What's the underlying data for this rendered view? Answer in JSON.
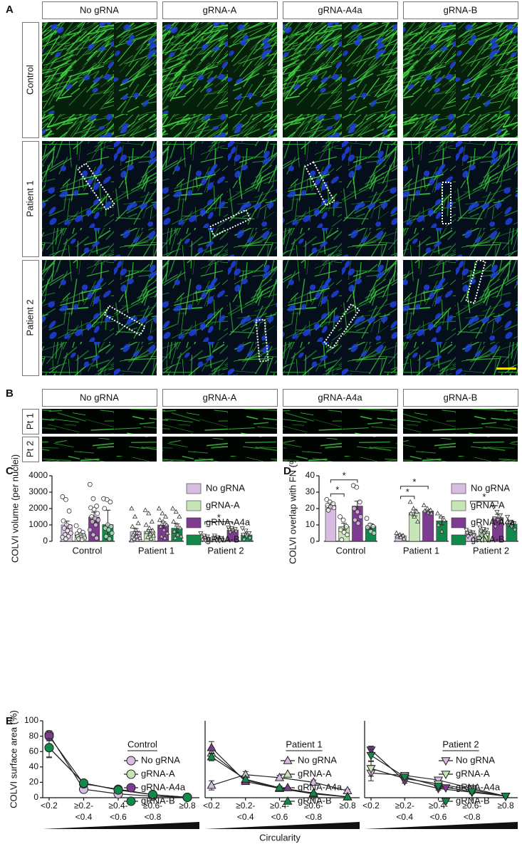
{
  "panel_labels": [
    "A",
    "B",
    "C",
    "D",
    "E"
  ],
  "panel_a": {
    "columns": [
      "No gRNA",
      "gRNA-A",
      "gRNA-A4a",
      "gRNA-B"
    ],
    "rows": [
      "Control",
      "Patient 1",
      "Patient 2"
    ]
  },
  "panel_b": {
    "columns": [
      "No gRNA",
      "gRNA-A",
      "gRNA-A4a",
      "gRNA-B"
    ],
    "rows": [
      "Pt 1",
      "Pt 2"
    ]
  },
  "panel_e": {
    "x_label": "Circularity"
  },
  "chart_data": [
    {
      "type": "bar",
      "y_label": "COLVI volume (per nuclei)",
      "categories": [
        "Control",
        "Patient 1",
        "Patient 2"
      ],
      "markers": [
        "circle",
        "triangle-up",
        "triangle-down"
      ],
      "series": [
        {
          "name": "No gRNA",
          "color": "#d7bde2",
          "values": [
            1000,
            580,
            230
          ],
          "errors": [
            230,
            200,
            80
          ],
          "points": [
            [
              2720,
              2550,
              1850,
              1250,
              1000,
              900,
              800,
              650,
              500,
              400,
              300,
              250,
              150
            ],
            [
              2000,
              1500,
              1100,
              900,
              700,
              500,
              400,
              300,
              200,
              150,
              100,
              50
            ],
            [
              500,
              350,
              300,
              250,
              200,
              150,
              100,
              50
            ]
          ]
        },
        {
          "name": "gRNA-A",
          "color": "#c6e6b8",
          "values": [
            400,
            600,
            160
          ],
          "errors": [
            80,
            130,
            40
          ],
          "points": [
            [
              950,
              650,
              550,
              450,
              400,
              350,
              300,
              250,
              200,
              150,
              100
            ],
            [
              1900,
              1700,
              1200,
              1000,
              800,
              650,
              550,
              450,
              350,
              250,
              150
            ],
            [
              350,
              250,
              200,
              150,
              120,
              100,
              80,
              50
            ]
          ]
        },
        {
          "name": "gRNA-A4a",
          "color": "#7d3c8f",
          "values": [
            1480,
            1000,
            680
          ],
          "errors": [
            300,
            190,
            70
          ],
          "points": [
            [
              3470,
              2600,
              2150,
              2050,
              1950,
              1700,
              1500,
              1400,
              1300,
              1200,
              1000,
              700,
              400,
              200
            ],
            [
              2000,
              1700,
              1500,
              1300,
              1200,
              1000,
              900,
              700,
              500,
              300,
              200
            ],
            [
              850,
              800,
              750,
              700,
              650,
              600,
              550
            ]
          ]
        },
        {
          "name": "gRNA-B",
          "color": "#12894a",
          "values": [
            1020,
            800,
            390
          ],
          "errors": [
            880,
            260,
            110
          ],
          "points": [
            [
              2600,
              2550,
              2400,
              2000,
              1000,
              900,
              800,
              700,
              500,
              300,
              150
            ],
            [
              2000,
              1800,
              1500,
              1200,
              1000,
              800,
              600,
              400,
              300,
              200
            ],
            [
              800,
              650,
              500,
              400,
              300,
              200,
              100
            ]
          ]
        }
      ],
      "ylim": [
        0,
        4000
      ],
      "yticks": [
        0,
        1000,
        2000,
        3000,
        4000
      ],
      "legend": "upper right",
      "annotations": [
        {
          "text": "*",
          "category": 2,
          "from": 0,
          "to": 2
        }
      ]
    },
    {
      "type": "bar",
      "y_label": "COLVI overlap with FN (%)",
      "categories": [
        "Control",
        "Patient 1",
        "Patient 2"
      ],
      "markers": [
        "circle",
        "triangle-up",
        "triangle-down"
      ],
      "series": [
        {
          "name": "No gRNA",
          "color": "#d7bde2",
          "values": [
            22,
            3.5,
            5
          ],
          "errors": [
            1.5,
            0.8,
            0.7
          ],
          "points": [
            [
              25.5,
              24,
              23,
              22,
              21,
              20.5,
              19
            ],
            [
              5,
              4,
              3.5,
              3,
              2.5,
              1.5
            ],
            [
              7,
              6,
              5.5,
              5,
              4.5,
              3.5,
              3
            ]
          ]
        },
        {
          "name": "gRNA-A",
          "color": "#c6e6b8",
          "values": [
            9,
            17.5,
            6
          ],
          "errors": [
            2,
            2,
            1
          ],
          "points": [
            [
              15,
              13,
              9,
              7,
              5.5,
              4,
              1
            ],
            [
              24,
              20,
              18,
              17,
              15,
              12
            ],
            [
              8.5,
              7.5,
              7,
              6,
              5,
              4,
              3
            ]
          ]
        },
        {
          "name": "gRNA-A4a",
          "color": "#7d3c8f",
          "values": [
            21.5,
            18.5,
            14.5
          ],
          "errors": [
            3,
            1,
            2
          ],
          "points": [
            [
              34,
              33,
              24,
              20,
              18,
              15,
              13,
              11
            ],
            [
              22,
              20,
              19,
              18.5,
              17.5,
              17
            ],
            [
              21,
              18,
              16,
              14,
              13,
              12,
              9
            ]
          ]
        },
        {
          "name": "gRNA-B",
          "color": "#12894a",
          "values": [
            9.2,
            12.5,
            10.5
          ],
          "errors": [
            1.5,
            2.5,
            1.5
          ],
          "points": [
            [
              14,
              10,
              9,
              8.5,
              6,
              5
            ],
            [
              17,
              15,
              13,
              10,
              6
            ],
            [
              15,
              12,
              11,
              10,
              9,
              7
            ]
          ]
        }
      ],
      "ylim": [
        0,
        40
      ],
      "yticks": [
        0,
        10,
        20,
        30,
        40
      ],
      "legend": "upper right",
      "annotations": [
        {
          "text": "*",
          "category": 0,
          "from": 0,
          "to": 1
        },
        {
          "text": "*",
          "category": 0,
          "from": 0,
          "to": 2
        },
        {
          "text": "*",
          "category": 1,
          "from": 0,
          "to": 1
        },
        {
          "text": "*",
          "category": 1,
          "from": 0,
          "to": 2
        },
        {
          "text": "*",
          "category": 2,
          "from": 0,
          "to": 2
        }
      ]
    },
    {
      "type": "line",
      "title": "Control",
      "marker": "circle",
      "y_label": "COLVI surface area (%)",
      "categories": [
        [
          "<0.2"
        ],
        [
          "≥0.2-",
          "<0.4"
        ],
        [
          "≥0.4-",
          "<0.6"
        ],
        [
          "≥0.6-",
          "<0.8"
        ],
        [
          "≥0.8"
        ]
      ],
      "series": [
        {
          "name": "No gRNA",
          "color": "#d7bde2",
          "values": [
            82,
            11,
            5,
            2,
            0.5
          ],
          "errors": [
            5,
            2,
            2,
            1,
            0.5
          ]
        },
        {
          "name": "gRNA-A",
          "color": "#c6e6b8",
          "values": [
            65,
            19,
            10,
            4,
            0.5
          ],
          "errors": [
            13,
            3,
            3,
            1,
            0.5
          ]
        },
        {
          "name": "gRNA-A4a",
          "color": "#7d3c8f",
          "values": [
            80,
            18,
            11,
            4,
            0.5
          ],
          "errors": [
            6,
            3,
            3,
            1,
            0.5
          ]
        },
        {
          "name": "gRNA-B",
          "color": "#12894a",
          "values": [
            65,
            19,
            10,
            4,
            0.5
          ],
          "errors": [
            12,
            3,
            3,
            1,
            0.5
          ]
        }
      ],
      "ylim": [
        0,
        100
      ],
      "yticks": [
        0,
        20,
        40,
        60,
        80,
        100
      ]
    },
    {
      "type": "line",
      "title": "Patient 1",
      "marker": "triangle-up",
      "categories": [
        [
          "<0.2"
        ],
        [
          "≥0.2-",
          "<0.4"
        ],
        [
          "≥0.4-",
          "<0.6"
        ],
        [
          "≥0.6-",
          "<0.8"
        ],
        [
          "≥0.8"
        ]
      ],
      "series": [
        {
          "name": "No gRNA",
          "color": "#d7bde2",
          "values": [
            16,
            30,
            26,
            20,
            9
          ],
          "errors": [
            6,
            4,
            3,
            3,
            2
          ]
        },
        {
          "name": "gRNA-A",
          "color": "#c6e6b8",
          "values": [
            58,
            23,
            12,
            5,
            1
          ],
          "errors": [
            7,
            3,
            2,
            1,
            0.5
          ]
        },
        {
          "name": "gRNA-A4a",
          "color": "#7d3c8f",
          "values": [
            65,
            21,
            12,
            6,
            1
          ],
          "errors": [
            8,
            3,
            2,
            1,
            0.5
          ]
        },
        {
          "name": "gRNA-B",
          "color": "#12894a",
          "values": [
            53,
            24,
            13,
            6,
            1
          ],
          "errors": [
            5,
            3,
            2,
            1,
            0.5
          ]
        }
      ],
      "ylim": [
        0,
        100
      ]
    },
    {
      "type": "line",
      "title": "Patient 2",
      "marker": "triangle-down",
      "categories": [
        [
          "<0.2"
        ],
        [
          "≥0.2-",
          "<0.4"
        ],
        [
          "≥0.4-",
          "<0.6"
        ],
        [
          "≥0.6-",
          "<0.8"
        ],
        [
          "≥0.8"
        ]
      ],
      "series": [
        {
          "name": "No gRNA",
          "color": "#d7bde2",
          "values": [
            32,
            29,
            23,
            12,
            2
          ],
          "errors": [
            10,
            3,
            3,
            2,
            1
          ]
        },
        {
          "name": "gRNA-A",
          "color": "#c6e6b8",
          "values": [
            38,
            25,
            18,
            10,
            2
          ],
          "errors": [
            10,
            3,
            3,
            2,
            1
          ]
        },
        {
          "name": "gRNA-A4a",
          "color": "#7d3c8f",
          "values": [
            62,
            22,
            12,
            7,
            2
          ],
          "errors": [
            5,
            3,
            2,
            2,
            1
          ]
        },
        {
          "name": "gRNA-B",
          "color": "#12894a",
          "values": [
            55,
            27,
            15,
            8,
            2
          ],
          "errors": [
            8,
            3,
            3,
            2,
            1
          ]
        }
      ],
      "ylim": [
        0,
        100
      ]
    }
  ]
}
